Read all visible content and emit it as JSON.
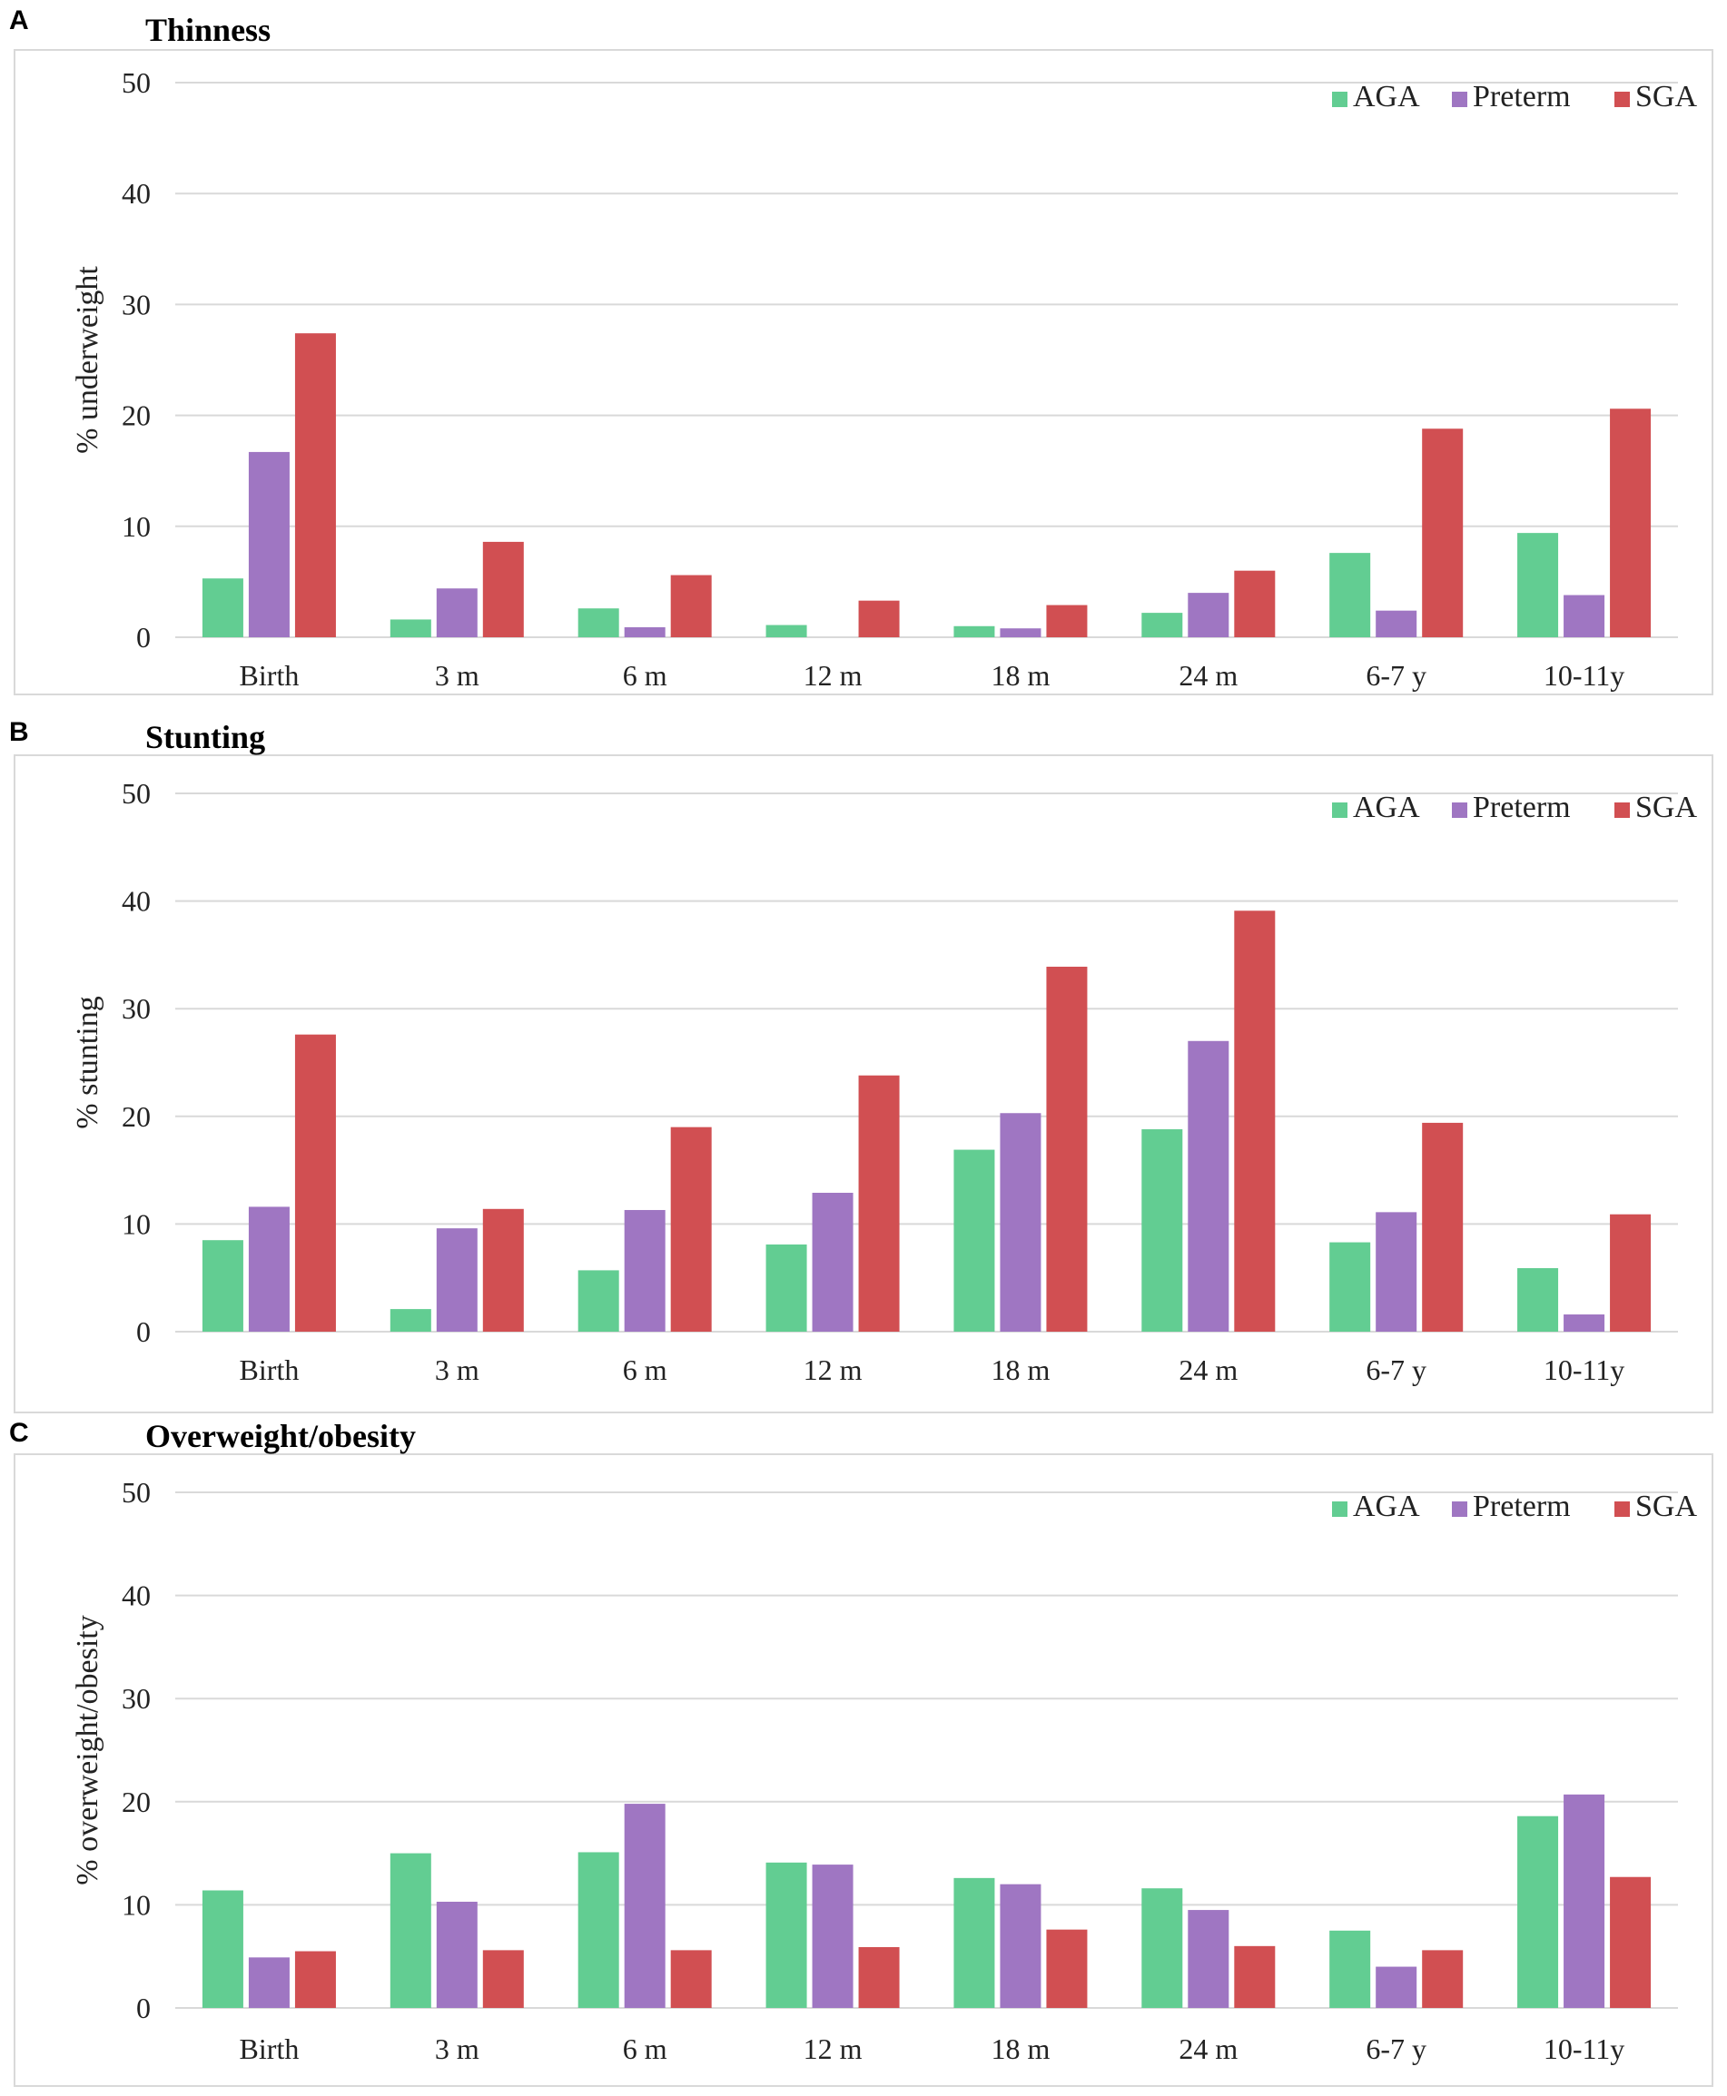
{
  "colors": {
    "AGA": "#62cd92",
    "Preterm": "#9f76c2",
    "SGA": "#d14f52"
  },
  "chart_data": [
    {
      "type": "bar",
      "panel_letter": "A",
      "title": "Thinness",
      "ylabel": "% underweight",
      "xlabel": "",
      "ylim": [
        0,
        50
      ],
      "yticks": [
        "0",
        "10",
        "20",
        "30",
        "40",
        "50"
      ],
      "categories": [
        "Birth",
        "3 m",
        "6 m",
        "12 m",
        "18 m",
        "24 m",
        "6-7 y",
        "10-11y"
      ],
      "legend": [
        "AGA",
        "Preterm",
        "SGA"
      ],
      "legend_position": "top-right",
      "series": [
        {
          "name": "AGA",
          "values": [
            5.3,
            1.6,
            2.6,
            1.1,
            1.0,
            2.2,
            7.6,
            9.4
          ]
        },
        {
          "name": "Preterm",
          "values": [
            16.7,
            4.4,
            0.9,
            0.0,
            0.8,
            4.0,
            2.4,
            3.8
          ]
        },
        {
          "name": "SGA",
          "values": [
            27.4,
            8.6,
            5.6,
            3.3,
            2.9,
            6.0,
            18.8,
            20.6
          ]
        }
      ]
    },
    {
      "type": "bar",
      "panel_letter": "B",
      "title": "Stunting",
      "ylabel": "% stunting",
      "xlabel": "",
      "ylim": [
        0,
        50
      ],
      "yticks": [
        "0",
        "10",
        "20",
        "30",
        "40",
        "50"
      ],
      "categories": [
        "Birth",
        "3 m",
        "6 m",
        "12 m",
        "18 m",
        "24 m",
        "6-7 y",
        "10-11y"
      ],
      "legend": [
        "AGA",
        "Preterm",
        "SGA"
      ],
      "legend_position": "top-right",
      "series": [
        {
          "name": "AGA",
          "values": [
            8.5,
            2.1,
            5.7,
            8.1,
            16.9,
            18.8,
            8.3,
            5.9
          ]
        },
        {
          "name": "Preterm",
          "values": [
            11.6,
            9.6,
            11.3,
            12.9,
            20.3,
            27.0,
            11.1,
            1.6
          ]
        },
        {
          "name": "SGA",
          "values": [
            27.6,
            11.4,
            19.0,
            23.8,
            33.9,
            39.1,
            19.4,
            10.9
          ]
        }
      ]
    },
    {
      "type": "bar",
      "panel_letter": "C",
      "title": "Overweight/obesity",
      "ylabel": "% overweight/obesity",
      "xlabel": "",
      "ylim": [
        0,
        50
      ],
      "yticks": [
        "0",
        "10",
        "20",
        "30",
        "40",
        "50"
      ],
      "categories": [
        "Birth",
        "3 m",
        "6 m",
        "12 m",
        "18 m",
        "24 m",
        "6-7 y",
        "10-11y"
      ],
      "legend": [
        "AGA",
        "Preterm",
        "SGA"
      ],
      "legend_position": "top-right",
      "series": [
        {
          "name": "AGA",
          "values": [
            11.4,
            15.0,
            15.1,
            14.1,
            12.6,
            11.6,
            7.5,
            18.6
          ]
        },
        {
          "name": "Preterm",
          "values": [
            4.9,
            10.3,
            19.8,
            13.9,
            12.0,
            9.5,
            4.0,
            20.7
          ]
        },
        {
          "name": "SGA",
          "values": [
            5.5,
            5.6,
            5.6,
            5.9,
            7.6,
            6.0,
            5.6,
            12.7
          ]
        }
      ]
    }
  ]
}
